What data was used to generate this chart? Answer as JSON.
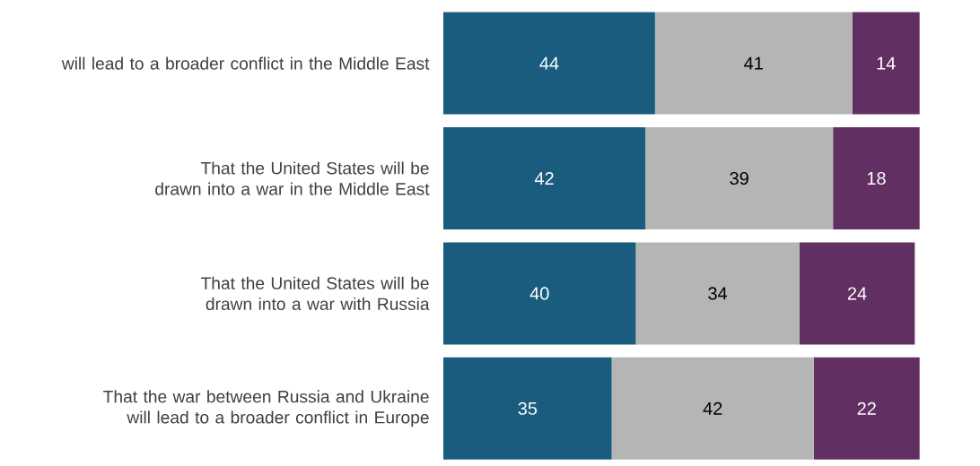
{
  "chart_data": {
    "type": "bar",
    "orientation": "horizontal",
    "stacked": true,
    "categories": [
      "will lead to a broader conflict in the Middle East",
      "That the United States will be drawn into a war in the Middle East",
      "That the United States will be drawn into a war with Russia",
      "That the war between Russia and Ukraine will lead to a broader conflict in Europe"
    ],
    "series": [
      {
        "color": "#1a5c7e",
        "values": [
          44,
          42,
          40,
          35
        ]
      },
      {
        "color": "#b5b5b5",
        "values": [
          41,
          39,
          34,
          42
        ]
      },
      {
        "color": "#622f63",
        "values": [
          14,
          18,
          24,
          22
        ]
      }
    ],
    "tick_labels": "y",
    "data_labels": true
  }
}
